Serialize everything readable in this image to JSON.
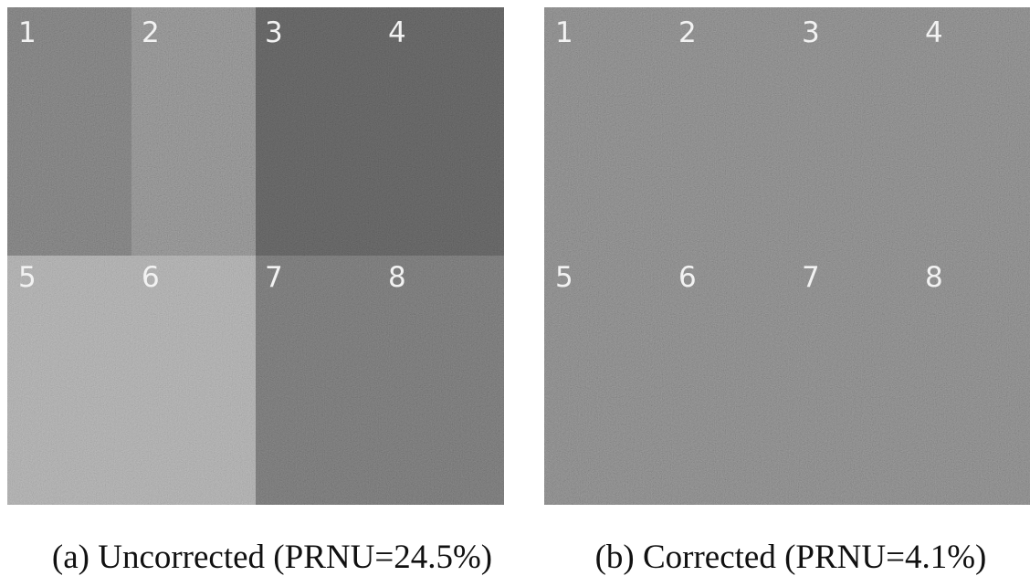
{
  "panels": [
    {
      "labels": [
        "1",
        "2",
        "3",
        "4",
        "5",
        "6",
        "7",
        "8"
      ],
      "caption": "(a) Uncorrected (PRNU=24.5%)"
    },
    {
      "labels": [
        "1",
        "2",
        "3",
        "4",
        "5",
        "6",
        "7",
        "8"
      ],
      "caption": "(b) Corrected (PRNU=4.1%)"
    }
  ]
}
